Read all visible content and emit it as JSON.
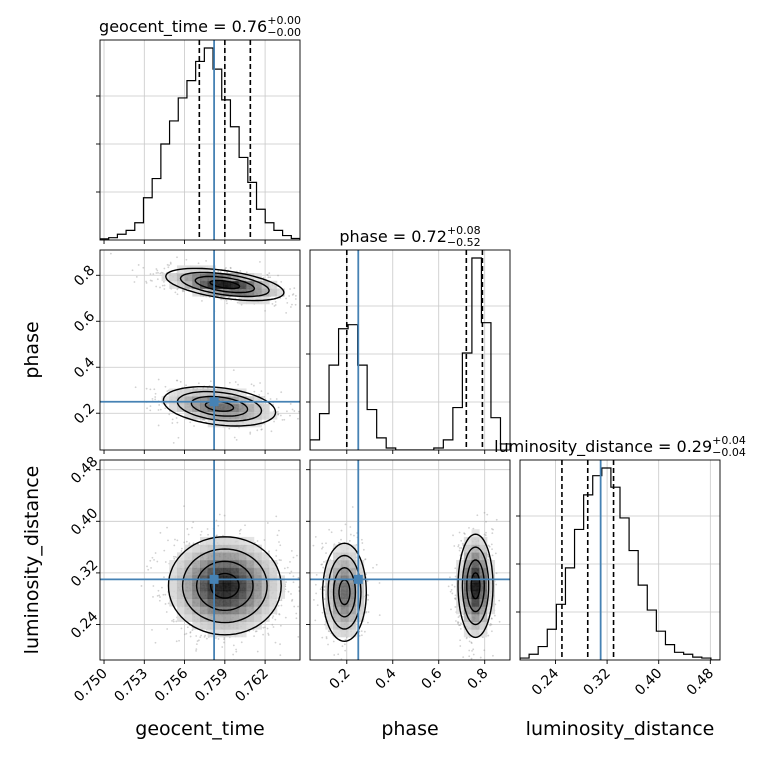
{
  "chart_data": {
    "type": "corner",
    "parameters": [
      {
        "name": "geocent_time",
        "label": "geocent_time",
        "range": [
          0.7497,
          0.7646
        ],
        "ticks": [
          "0.750",
          "0.753",
          "0.756",
          "0.759",
          "0.762"
        ],
        "tick_values": [
          0.75,
          0.753,
          0.756,
          0.759,
          0.762
        ],
        "truth": 0.7582,
        "title": {
          "text": "geocent_time = 0.76",
          "plus": "+0.00",
          "minus": "−0.00"
        },
        "quantiles": [
          0.7571,
          0.759,
          0.7609
        ],
        "hist": [
          0.006,
          0.012,
          0.03,
          0.05,
          0.09,
          0.22,
          0.32,
          0.5,
          0.62,
          0.74,
          0.83,
          0.93,
          1.0,
          0.89,
          0.73,
          0.59,
          0.43,
          0.3,
          0.16,
          0.09,
          0.05,
          0.023,
          0.008
        ]
      },
      {
        "name": "phase",
        "label": "phase",
        "range": [
          0.04,
          0.91
        ],
        "ticks": [
          "0.2",
          "0.4",
          "0.6",
          "0.8"
        ],
        "tick_values": [
          0.2,
          0.4,
          0.6,
          0.8
        ],
        "truth": 0.25,
        "title": {
          "text": "phase = 0.72",
          "plus": "+0.08",
          "minus": "−0.52"
        },
        "quantiles": [
          0.2,
          0.72,
          0.79
        ],
        "hist": [
          0.05,
          0.18,
          0.42,
          0.6,
          0.62,
          0.42,
          0.2,
          0.06,
          0.01,
          0.0,
          0.0,
          0.0,
          0.0,
          0.01,
          0.05,
          0.21,
          0.48,
          0.95,
          0.63,
          0.16,
          0.03
        ]
      },
      {
        "name": "luminosity_distance",
        "label": "luminosity_distance",
        "range": [
          0.185,
          0.495
        ],
        "ticks": [
          "0.24",
          "0.32",
          "0.40",
          "0.48"
        ],
        "tick_values": [
          0.24,
          0.32,
          0.4,
          0.48
        ],
        "truth": 0.31,
        "title": {
          "text": "luminosity_distance = 0.29",
          "plus": "+0.04",
          "minus": "−0.04"
        },
        "quantiles": [
          0.25,
          0.29,
          0.33
        ],
        "hist": [
          0.01,
          0.03,
          0.07,
          0.16,
          0.29,
          0.48,
          0.68,
          0.86,
          0.96,
          1.0,
          0.9,
          0.74,
          0.57,
          0.39,
          0.26,
          0.15,
          0.08,
          0.04,
          0.03,
          0.015,
          0.01,
          0.0
        ]
      }
    ],
    "grid": true,
    "truth_color": "#4682b4",
    "contour_color": "#000000",
    "density": {
      "geocent_time|phase": {
        "modes": [
          {
            "x": 0.759,
            "y": 0.76,
            "sx": 0.0022,
            "sy": 0.035,
            "rho": -0.5,
            "w": 0.6
          },
          {
            "x": 0.7586,
            "y": 0.23,
            "sx": 0.0022,
            "sy": 0.045,
            "rho": -0.3,
            "w": 0.4
          }
        ]
      },
      "geocent_time|luminosity_distance": {
        "modes": [
          {
            "x": 0.759,
            "y": 0.3,
            "sx": 0.0021,
            "sy": 0.038,
            "rho": 0.0,
            "w": 1.0
          }
        ]
      },
      "phase|luminosity_distance": {
        "modes": [
          {
            "x": 0.19,
            "y": 0.29,
            "sx": 0.05,
            "sy": 0.04,
            "rho": 0.0,
            "w": 0.4
          },
          {
            "x": 0.76,
            "y": 0.3,
            "sx": 0.038,
            "sy": 0.04,
            "rho": 0.0,
            "w": 0.6
          }
        ]
      }
    }
  }
}
